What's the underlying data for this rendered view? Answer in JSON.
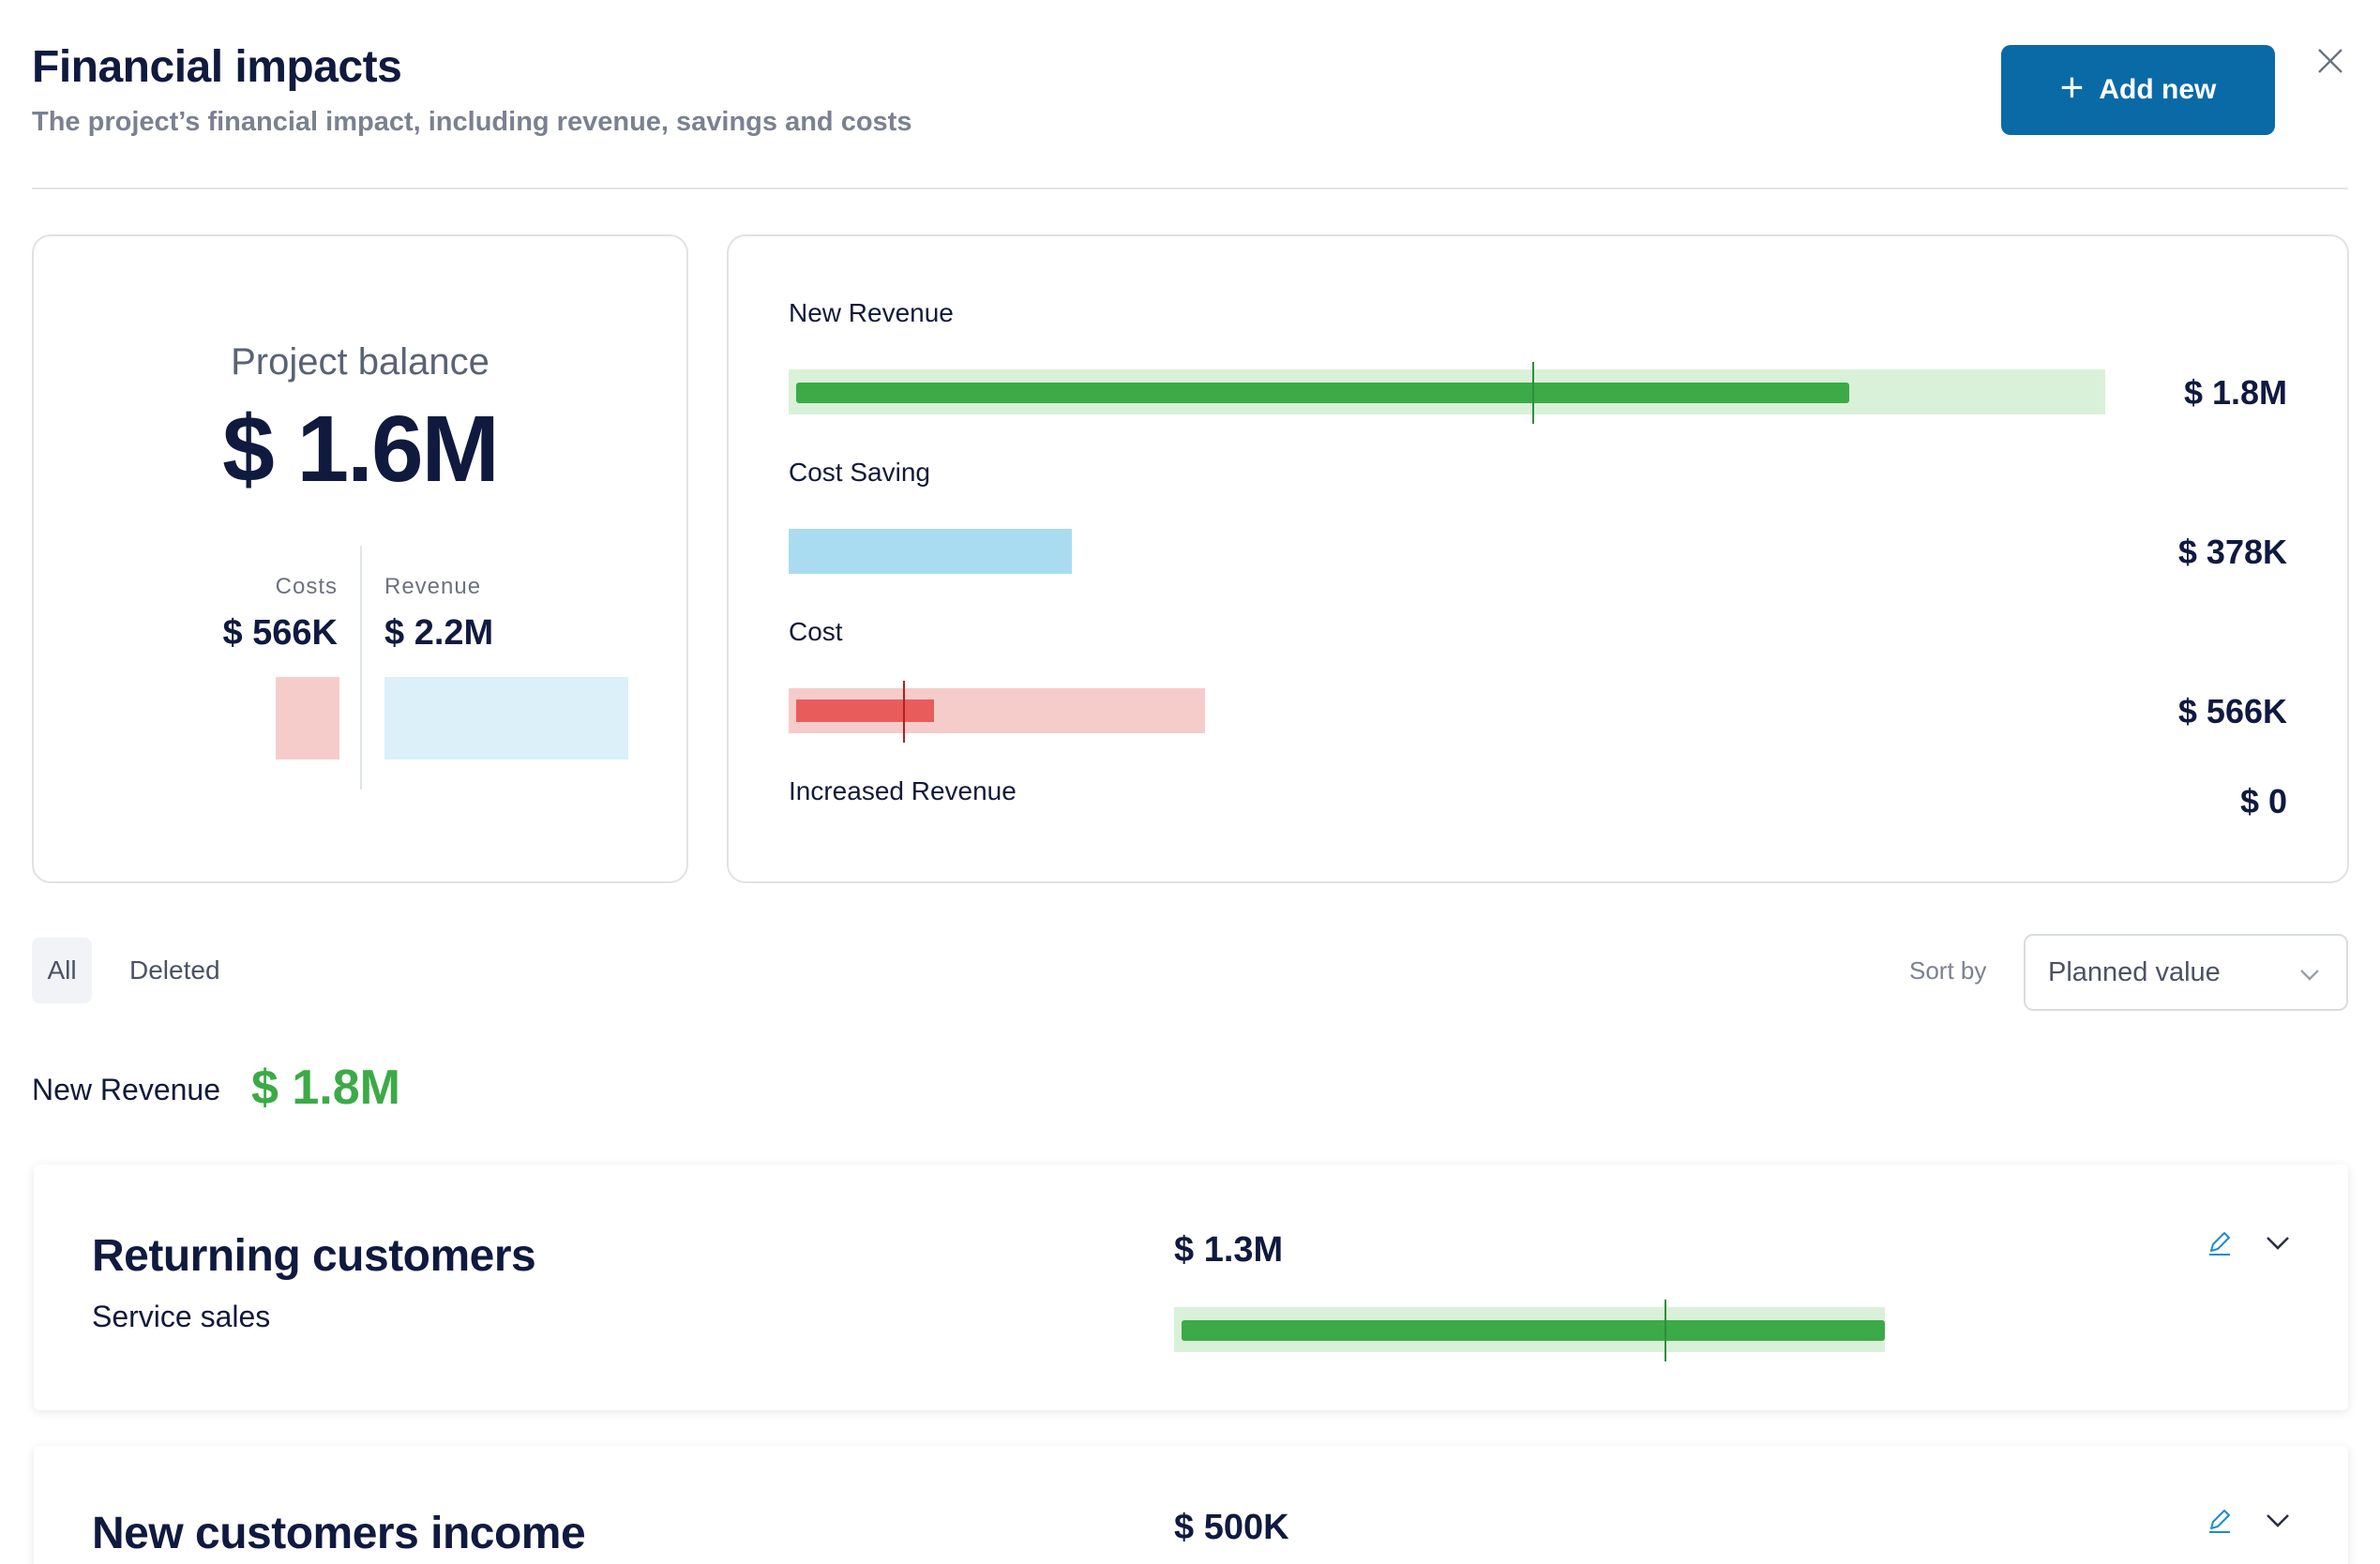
{
  "header": {
    "title": "Financial impacts",
    "subtitle": "The project’s financial impact, including revenue, savings and costs",
    "add_button": "Add new",
    "add_icon": "plus-icon",
    "close_icon": "close-icon"
  },
  "balance": {
    "label": "Project balance",
    "value": "$ 1.6M",
    "costs_label": "Costs",
    "costs_value": "$ 566K",
    "revenue_label": "Revenue",
    "revenue_value": "$ 2.2M"
  },
  "breakdown": [
    {
      "label": "New Revenue",
      "amount": "$ 1.8M",
      "planned_fraction": 0.8,
      "actual_fraction": 0.565,
      "color": "#3caa47",
      "bg": "#d9f1d9"
    },
    {
      "label": "Cost Saving",
      "amount": "$ 378K",
      "planned_fraction": 0.215,
      "actual_fraction": null,
      "color": "#a9dcf1",
      "bg": "#a9dcf1"
    },
    {
      "label": "Cost",
      "amount": "$ 566K",
      "planned_fraction": 0.105,
      "actual_fraction": 0.087,
      "color": "#e85c5c",
      "bg": "#f6cccb"
    },
    {
      "label": "Increased Revenue",
      "amount": "$ 0"
    }
  ],
  "filters": {
    "tab_all": "All",
    "tab_deleted": "Deleted",
    "sort_label": "Sort by",
    "sort_value": "Planned value"
  },
  "section": {
    "title": "New Revenue",
    "amount": "$ 1.8M"
  },
  "items": [
    {
      "title": "Returning customers",
      "subtitle": "Service sales",
      "amount": "$ 1.3M",
      "planned_fraction": 0.99,
      "actual_fraction": 0.69
    },
    {
      "title": "New customers income",
      "subtitle": "",
      "amount": "$ 500K"
    }
  ],
  "colors": {
    "brand": "#0a6aa6",
    "green": "#3caa47",
    "green_bg": "#d9f1d9",
    "red": "#e85c5c",
    "red_bg": "#f6cccb",
    "blue_bg": "#a9dcf1"
  }
}
